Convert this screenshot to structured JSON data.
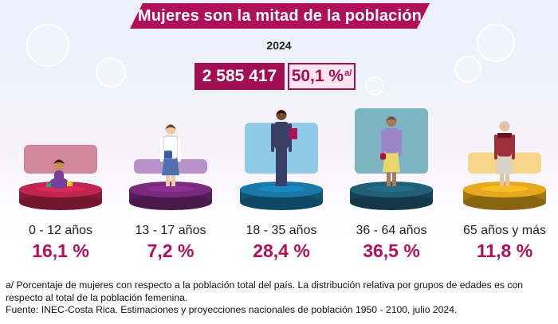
{
  "title": "Mujeres son la mitad de la población",
  "year": "2024",
  "total": "2 585 417",
  "share": "50,1 %",
  "share_note": "a/",
  "chart_data": {
    "type": "bar",
    "categories": [
      "0 - 12 años",
      "13 - 17 años",
      "18 - 35 años",
      "36 - 64 años",
      "65 años y más"
    ],
    "values": [
      16.1,
      7.2,
      28.4,
      36.5,
      11.8
    ],
    "value_labels": [
      "16,1 %",
      "7,2 %",
      "28,4 %",
      "36,5 %",
      "11,8 %"
    ],
    "unit": "%",
    "colors": [
      "#c0254f",
      "#7a2a7e",
      "#1878a8",
      "#1f5f78",
      "#e6a81c"
    ],
    "backdrop_colors": [
      "#d1879b",
      "#b891c9",
      "#8fcbe8",
      "#7db4c4",
      "#f6d68a"
    ],
    "title": "",
    "xlabel": "",
    "ylabel": ""
  },
  "footnotes": [
    "a/ Porcentaje de mujeres con respecto a la población total del país. La distribución relativa por grupos de edades es con respecto al total de la población femenina.",
    "Fuente: INEC-Costa Rica. Estimaciones y proyecciones nacionales de población 1950 - 2100, julio 2024."
  ]
}
